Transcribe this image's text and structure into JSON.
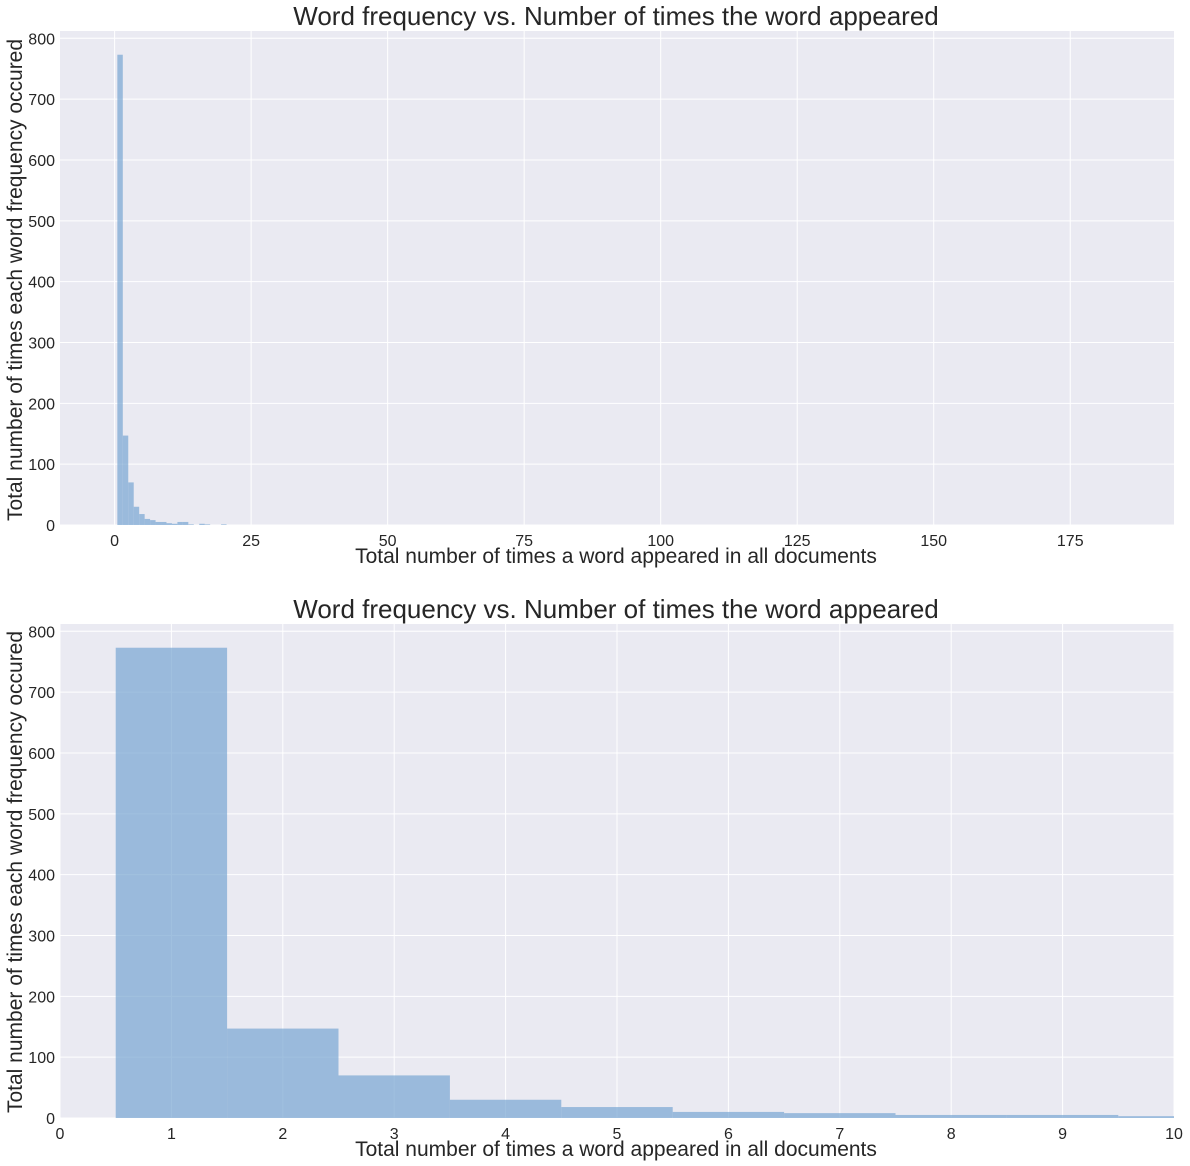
{
  "chart_data": [
    {
      "type": "bar",
      "title": "Word frequency vs. Number of times the word appeared",
      "xlabel": "Total number of times a word appeared in all documents",
      "ylabel": "Total number of times each word frequency occured",
      "xlim": [
        -10,
        194
      ],
      "ylim": [
        0,
        812
      ],
      "xticks": [
        0,
        25,
        50,
        75,
        100,
        125,
        150,
        175
      ],
      "yticks": [
        0,
        100,
        200,
        300,
        400,
        500,
        600,
        700,
        800
      ],
      "grid": true,
      "bar_color": "#7ba7d2",
      "bins": [
        {
          "x0": 0.5,
          "x1": 1.5,
          "value": 773
        },
        {
          "x0": 1.5,
          "x1": 2.5,
          "value": 147
        },
        {
          "x0": 2.5,
          "x1": 3.5,
          "value": 70
        },
        {
          "x0": 3.5,
          "x1": 4.5,
          "value": 30
        },
        {
          "x0": 4.5,
          "x1": 5.5,
          "value": 18
        },
        {
          "x0": 5.5,
          "x1": 6.5,
          "value": 10
        },
        {
          "x0": 6.5,
          "x1": 7.5,
          "value": 8
        },
        {
          "x0": 7.5,
          "x1": 8.5,
          "value": 5
        },
        {
          "x0": 8.5,
          "x1": 9.5,
          "value": 5
        },
        {
          "x0": 9.5,
          "x1": 10.5,
          "value": 3
        },
        {
          "x0": 10.5,
          "x1": 11.5,
          "value": 2
        },
        {
          "x0": 11.5,
          "x1": 12.5,
          "value": 5
        },
        {
          "x0": 12.5,
          "x1": 13.5,
          "value": 5
        },
        {
          "x0": 13.5,
          "x1": 14.5,
          "value": 1
        },
        {
          "x0": 15.5,
          "x1": 16.5,
          "value": 2
        },
        {
          "x0": 16.5,
          "x1": 17.5,
          "value": 1
        },
        {
          "x0": 19.5,
          "x1": 20.5,
          "value": 1
        }
      ]
    },
    {
      "type": "bar",
      "title": "Word frequency vs. Number of times the word appeared",
      "xlabel": "Total number of times a word appeared in all documents",
      "ylabel": "Total number of times each word frequency occured",
      "xlim": [
        0,
        10
      ],
      "ylim": [
        0,
        812
      ],
      "xticks": [
        0,
        1,
        2,
        3,
        4,
        5,
        6,
        7,
        8,
        9,
        10
      ],
      "yticks": [
        0,
        100,
        200,
        300,
        400,
        500,
        600,
        700,
        800
      ],
      "grid": true,
      "bar_color": "#7ba7d2",
      "bins": [
        {
          "x0": 0.5,
          "x1": 1.5,
          "value": 773
        },
        {
          "x0": 1.5,
          "x1": 2.5,
          "value": 147
        },
        {
          "x0": 2.5,
          "x1": 3.5,
          "value": 70
        },
        {
          "x0": 3.5,
          "x1": 4.5,
          "value": 30
        },
        {
          "x0": 4.5,
          "x1": 5.5,
          "value": 18
        },
        {
          "x0": 5.5,
          "x1": 6.5,
          "value": 10
        },
        {
          "x0": 6.5,
          "x1": 7.5,
          "value": 8
        },
        {
          "x0": 7.5,
          "x1": 8.5,
          "value": 5
        },
        {
          "x0": 8.5,
          "x1": 9.5,
          "value": 5
        },
        {
          "x0": 9.5,
          "x1": 10.5,
          "value": 3
        }
      ]
    }
  ]
}
